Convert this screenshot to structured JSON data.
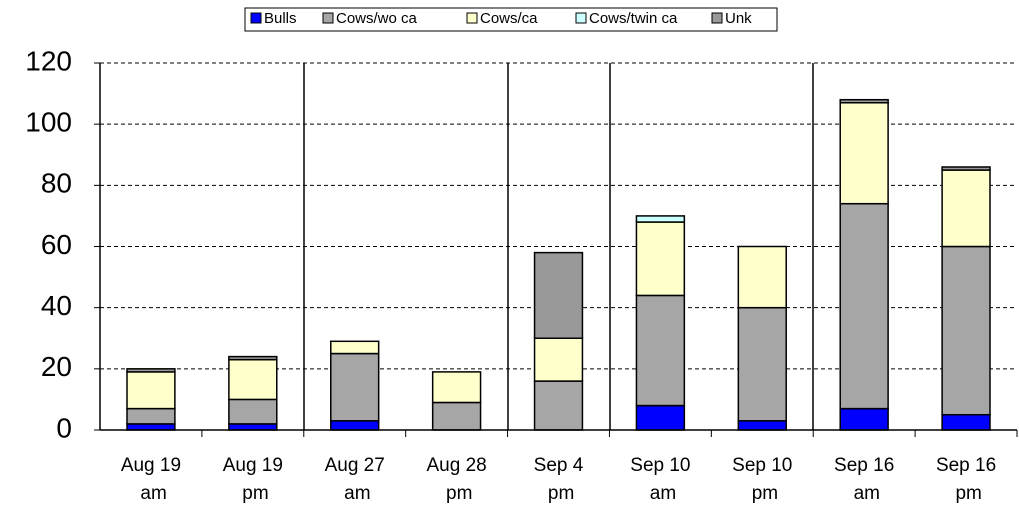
{
  "chart_data": {
    "type": "stacked_bar",
    "categories": [
      "Aug 19 am",
      "Aug 19 pm",
      "Aug 27 am",
      "Aug 28 pm",
      "Sep 4 pm",
      "Sep 10 am",
      "Sep 10 pm",
      "Sep 16 am",
      "Sep 16 pm"
    ],
    "series": [
      {
        "name": "Bulls",
        "color": "#0000ff",
        "values": [
          2,
          2,
          3,
          0,
          0,
          8,
          3,
          7,
          5
        ]
      },
      {
        "name": "Cows/wo ca",
        "color": "#a6a6a6",
        "values": [
          5,
          8,
          22,
          9,
          16,
          36,
          37,
          67,
          55
        ]
      },
      {
        "name": "Cows/ca",
        "color": "#ffffcc",
        "values": [
          12,
          13,
          4,
          10,
          14,
          24,
          20,
          33,
          25
        ]
      },
      {
        "name": "Cows/twin ca",
        "color": "#ccffff",
        "values": [
          0,
          0,
          0,
          0,
          0,
          2,
          0,
          0,
          0
        ]
      },
      {
        "name": "Unk",
        "color": "#999999",
        "values": [
          1,
          1,
          0,
          0,
          28,
          0,
          0,
          1,
          1
        ]
      }
    ],
    "ylim": [
      0,
      120
    ],
    "yticks": [
      0,
      20,
      40,
      60,
      80,
      100,
      120
    ],
    "grid": true,
    "legend": "top"
  }
}
